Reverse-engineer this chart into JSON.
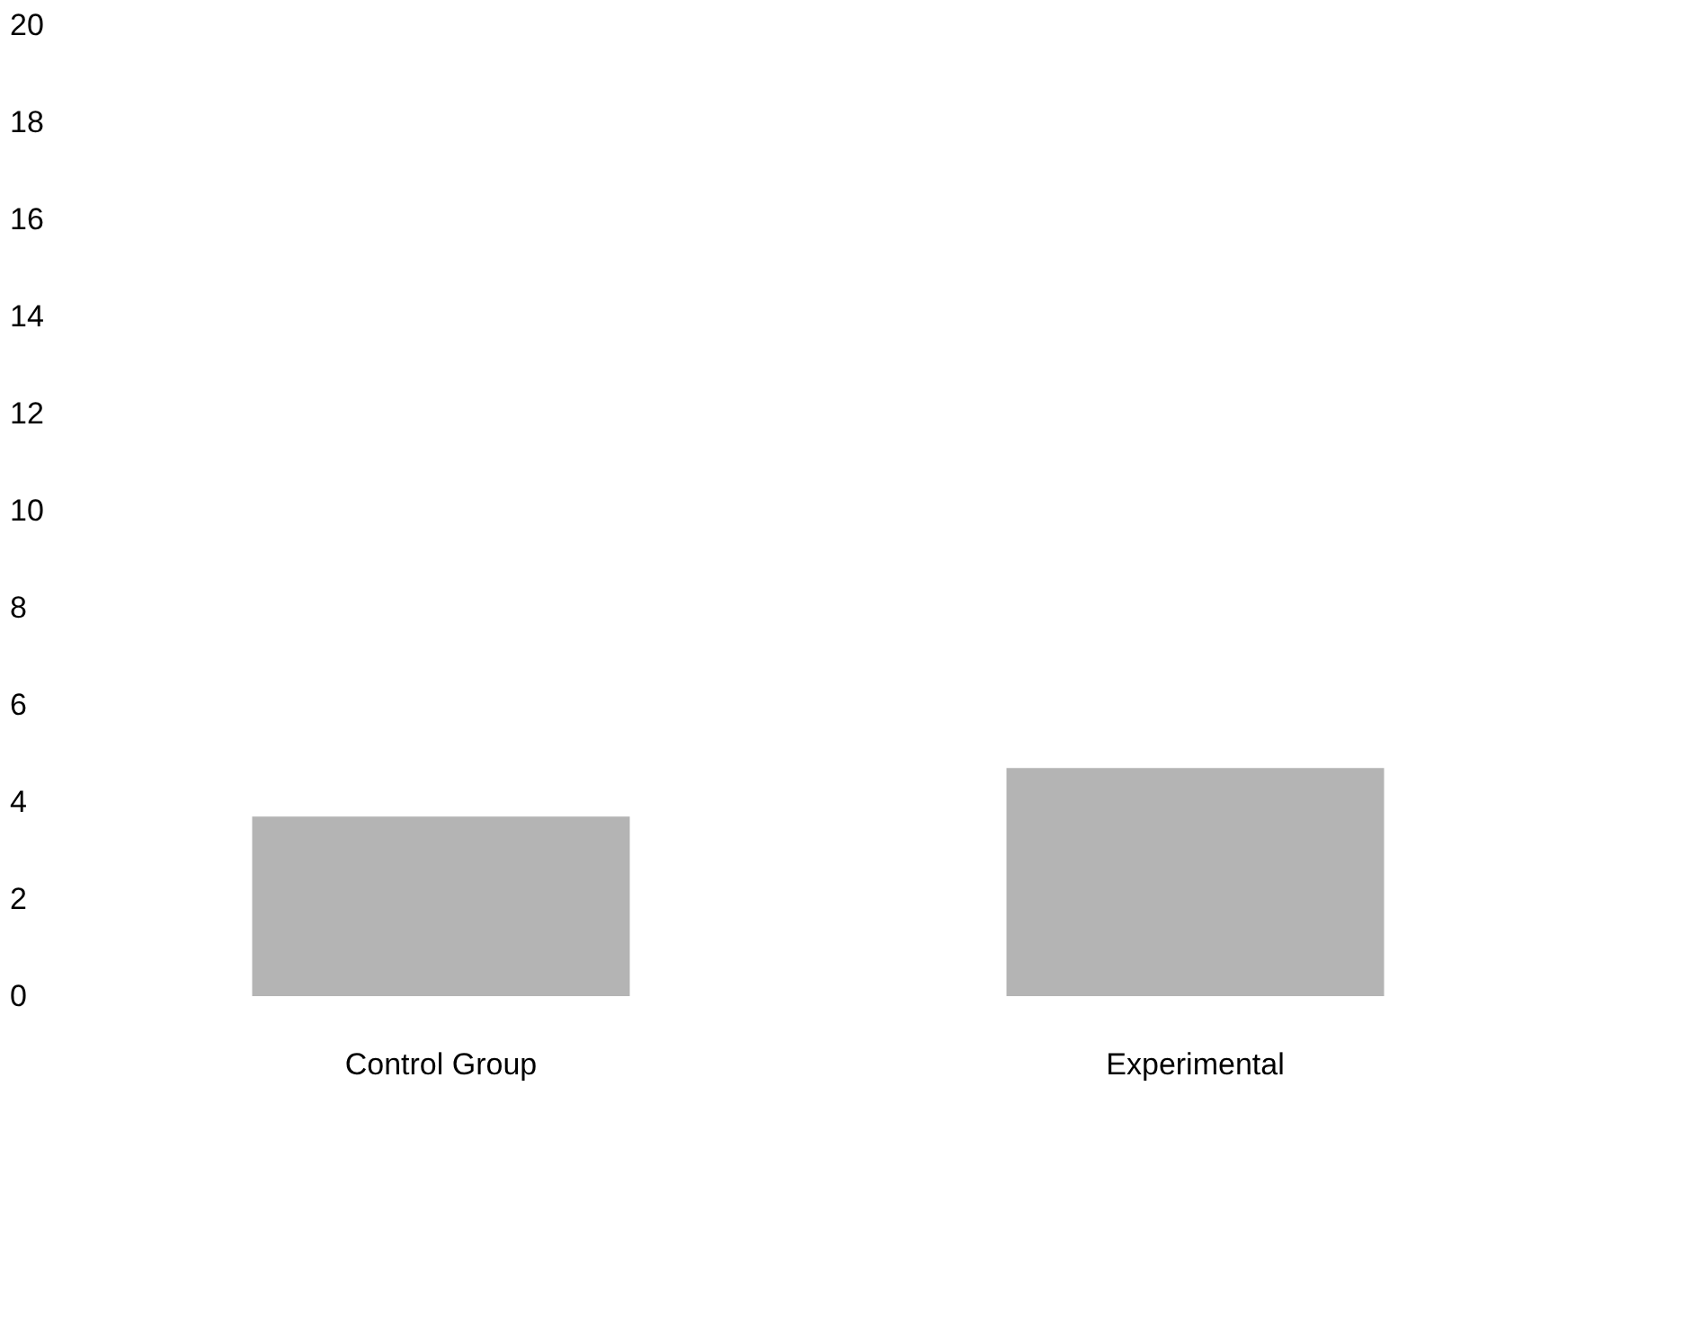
{
  "chart_data": {
    "type": "bar",
    "categories": [
      "Control Group",
      "Experimental"
    ],
    "values": [
      3.7,
      4.7
    ],
    "color": "#b4b4b4",
    "ylim": [
      0,
      20
    ],
    "yticks": [
      0,
      2,
      4,
      6,
      8,
      10,
      12,
      14,
      16,
      18,
      20
    ],
    "grid": false
  }
}
